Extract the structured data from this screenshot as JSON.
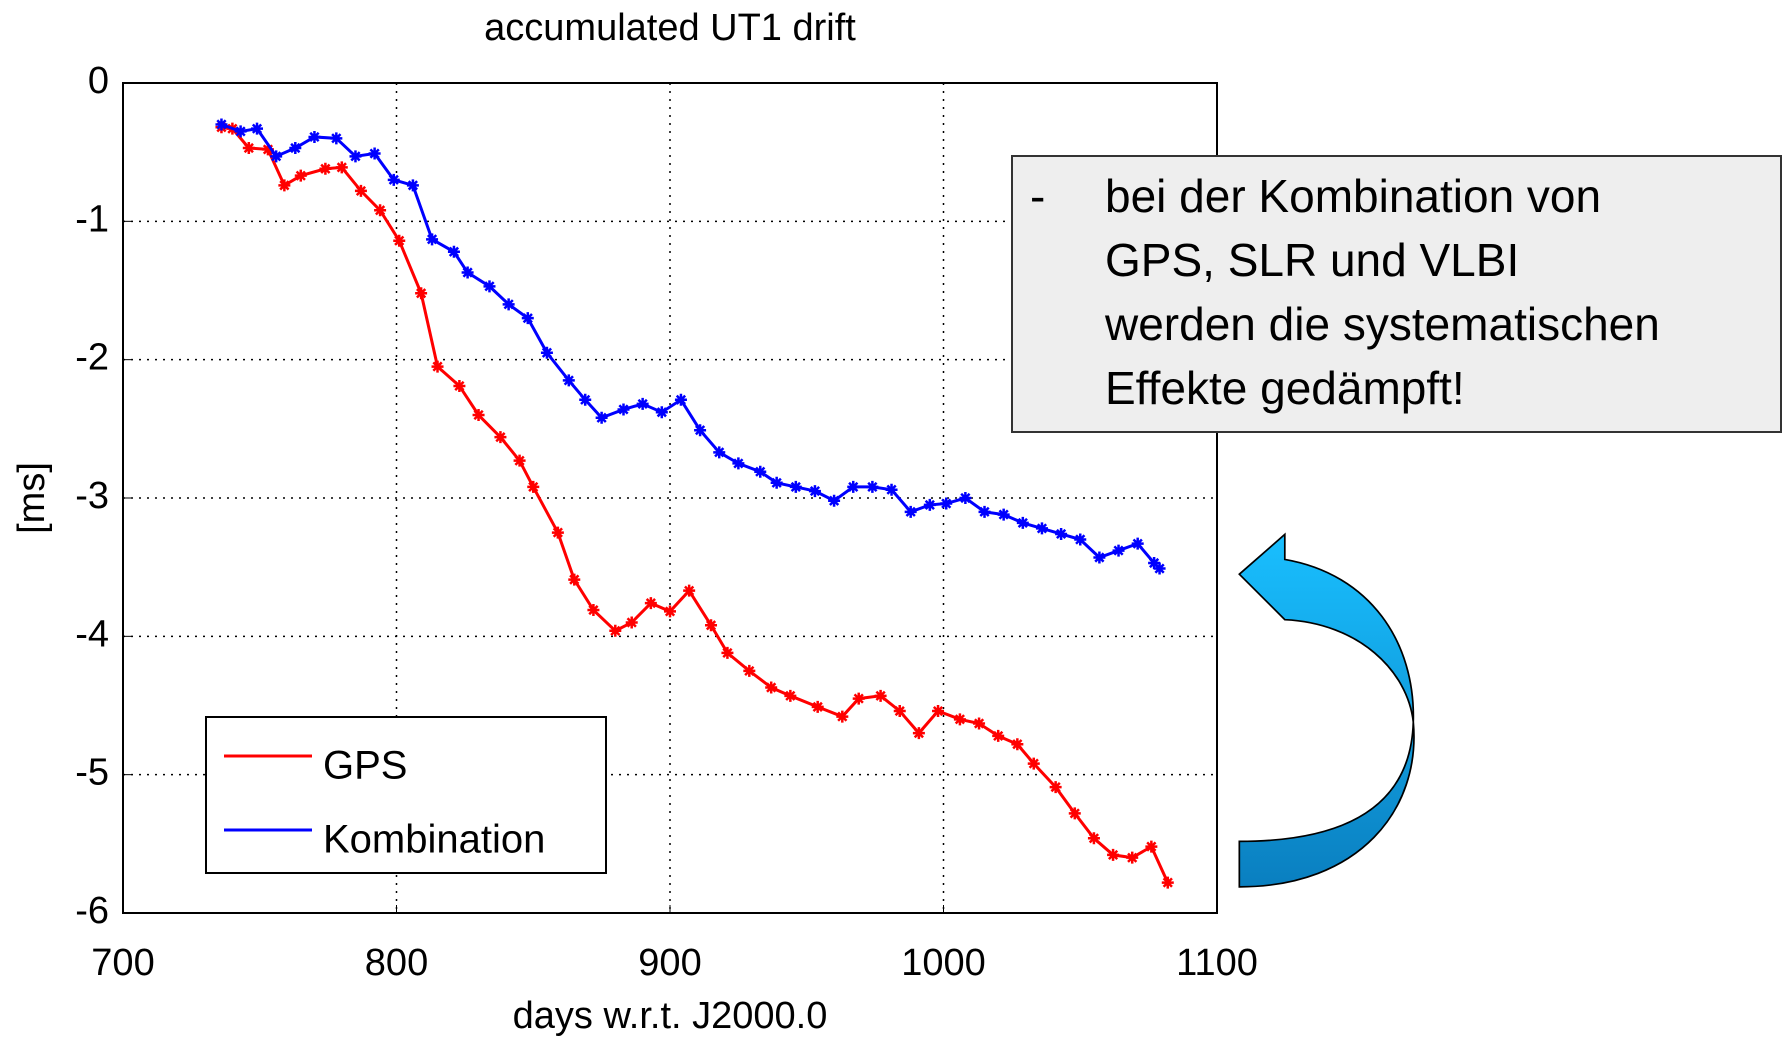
{
  "chart_data": {
    "type": "line",
    "title": "accumulated UT1 drift",
    "xlabel": "days w.r.t. J2000.0",
    "ylabel": "[ms]",
    "xlim": [
      700,
      1100
    ],
    "xticks": [
      700,
      800,
      900,
      1000,
      1100
    ],
    "ylim": [
      -6,
      0
    ],
    "yticks": [
      0,
      -1,
      -2,
      -3,
      -4,
      -5,
      -6
    ],
    "grid": true,
    "legend": "lower left",
    "series": [
      {
        "name": "GPS",
        "color": "#ff0000",
        "x": [
          736,
          740,
          746,
          753,
          759,
          765,
          774,
          780,
          787,
          794,
          801,
          809,
          815,
          823,
          830,
          838,
          845,
          850,
          859,
          865,
          872,
          880,
          886,
          893,
          900,
          907,
          915,
          921,
          929,
          937,
          944,
          954,
          963,
          969,
          977,
          984,
          991,
          998,
          1006,
          1013,
          1020,
          1027,
          1033,
          1041,
          1048,
          1055,
          1062,
          1069,
          1076,
          1082
        ],
        "values": [
          -0.32,
          -0.33,
          -0.47,
          -0.48,
          -0.74,
          -0.67,
          -0.62,
          -0.61,
          -0.78,
          -0.92,
          -1.14,
          -1.52,
          -2.05,
          -2.19,
          -2.4,
          -2.56,
          -2.73,
          -2.92,
          -3.25,
          -3.59,
          -3.81,
          -3.96,
          -3.9,
          -3.76,
          -3.82,
          -3.67,
          -3.92,
          -4.12,
          -4.25,
          -4.37,
          -4.43,
          -4.51,
          -4.58,
          -4.45,
          -4.43,
          -4.54,
          -4.7,
          -4.54,
          -4.6,
          -4.63,
          -4.72,
          -4.78,
          -4.92,
          -5.09,
          -5.28,
          -5.46,
          -5.58,
          -5.6,
          -5.52,
          -5.78
        ]
      },
      {
        "name": "Kombination",
        "color": "#0000ff",
        "x": [
          736,
          743,
          749,
          756,
          763,
          770,
          778,
          785,
          792,
          799,
          806,
          813,
          821,
          826,
          834,
          841,
          848,
          855,
          863,
          869,
          875,
          883,
          890,
          897,
          904,
          911,
          918,
          925,
          933,
          939,
          946,
          953,
          960,
          967,
          974,
          981,
          988,
          995,
          1001,
          1008,
          1015,
          1022,
          1029,
          1036,
          1043,
          1050,
          1057,
          1064,
          1071,
          1077,
          1079
        ],
        "values": [
          -0.3,
          -0.35,
          -0.33,
          -0.53,
          -0.47,
          -0.39,
          -0.4,
          -0.53,
          -0.51,
          -0.7,
          -0.74,
          -1.13,
          -1.22,
          -1.37,
          -1.47,
          -1.6,
          -1.7,
          -1.95,
          -2.15,
          -2.29,
          -2.42,
          -2.36,
          -2.32,
          -2.38,
          -2.29,
          -2.51,
          -2.67,
          -2.75,
          -2.81,
          -2.89,
          -2.92,
          -2.95,
          -3.02,
          -2.92,
          -2.92,
          -2.94,
          -3.1,
          -3.05,
          -3.04,
          -3,
          -3.1,
          -3.12,
          -3.18,
          -3.22,
          -3.26,
          -3.3,
          -3.43,
          -3.38,
          -3.33,
          -3.47,
          -3.51
        ]
      }
    ]
  },
  "annotation": {
    "bullet": "-",
    "lines": [
      "bei der Kombination von",
      "GPS, SLR und VLBI",
      "werden die systematischen",
      "Effekte gedämpft!"
    ]
  }
}
